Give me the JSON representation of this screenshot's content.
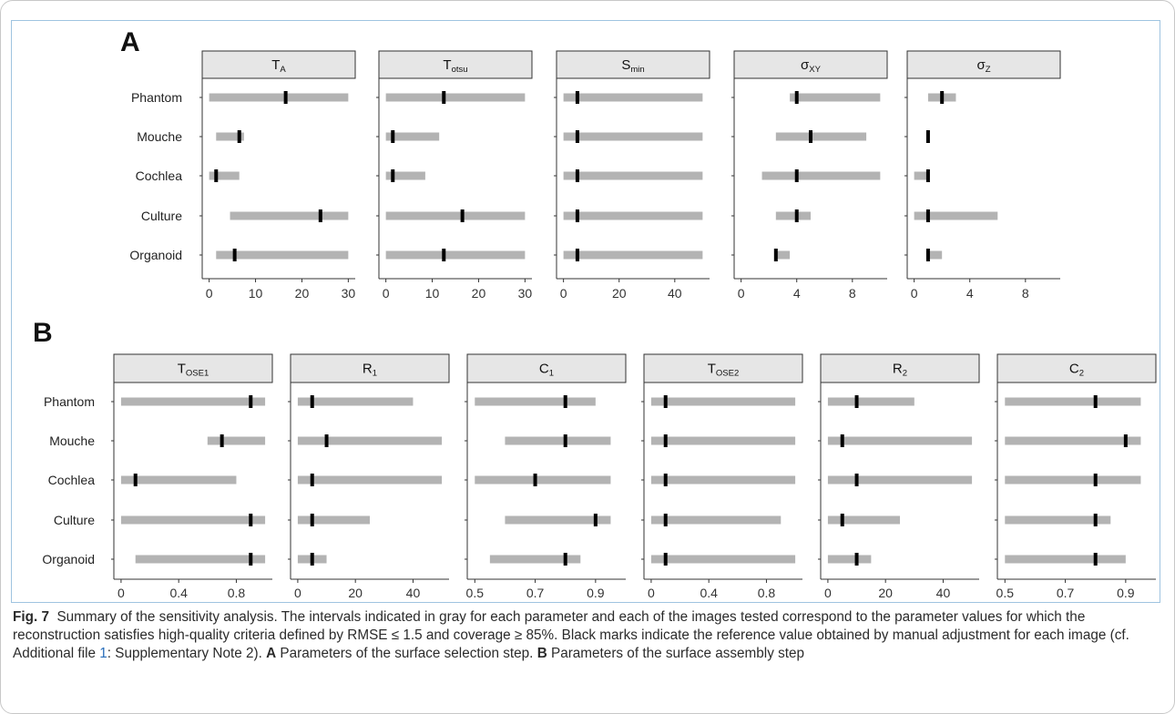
{
  "figure": {
    "panel_letters": [
      "A",
      "B"
    ],
    "caption": {
      "label": "Fig. 7",
      "text_1": "Summary of the sensitivity analysis. The intervals indicated in gray for each parameter and each of the images tested correspond to the parameter values for which the reconstruction satisfies high-quality criteria defined by RMSE ≤ 1.5 and coverage ≥ 85%. Black marks indicate the reference value obtained by manual adjustment for each image (cf. Additional file ",
      "link": "1",
      "text_2": ": Supplementary Note 2). ",
      "a_label": "A",
      "a_text": " Parameters of the surface selection step. ",
      "b_label": "B",
      "b_text": " Parameters of the surface assembly step"
    }
  },
  "colors": {
    "interval": "#b3b3b3",
    "reference": "#000000",
    "strip": "#e6e6e6",
    "axis": "#333333"
  },
  "chart_data": [
    {
      "type": "interval",
      "panel": "A",
      "categories": [
        "Phantom",
        "Mouche",
        "Cochlea",
        "Culture",
        "Organoid"
      ],
      "facets": [
        {
          "title": "T",
          "sub": "A",
          "ticks": [
            0,
            10,
            20,
            30
          ],
          "tick_labels": [
            "0",
            "10",
            "20",
            "30"
          ],
          "xlim": [
            -1.5,
            31.5
          ],
          "intervals": [
            [
              0,
              30
            ],
            [
              1.5,
              7.5
            ],
            [
              0,
              6.5
            ],
            [
              4.5,
              30
            ],
            [
              1.5,
              30
            ]
          ],
          "reference": [
            16.5,
            6.5,
            1.5,
            24,
            5.5
          ]
        },
        {
          "title": "T",
          "sub": "otsu",
          "ticks": [
            0,
            10,
            20,
            30
          ],
          "tick_labels": [
            "0",
            "10",
            "20",
            "30"
          ],
          "xlim": [
            -1.5,
            31.5
          ],
          "intervals": [
            [
              0,
              30
            ],
            [
              0,
              11.5
            ],
            [
              0,
              8.5
            ],
            [
              0,
              30
            ],
            [
              0,
              30
            ]
          ],
          "reference": [
            12.5,
            1.5,
            1.5,
            16.5,
            12.5
          ]
        },
        {
          "title": "S",
          "sub": "min",
          "ticks": [
            0,
            20,
            40
          ],
          "tick_labels": [
            "0",
            "20",
            "40"
          ],
          "xlim": [
            -2.5,
            52.5
          ],
          "intervals": [
            [
              0,
              50
            ],
            [
              0,
              50
            ],
            [
              0,
              50
            ],
            [
              0,
              50
            ],
            [
              0,
              50
            ]
          ],
          "reference": [
            5,
            5,
            5,
            5,
            5
          ]
        },
        {
          "title": "σ",
          "sub": "XY",
          "ticks": [
            0,
            4,
            8
          ],
          "tick_labels": [
            "0",
            "4",
            "8"
          ],
          "xlim": [
            -0.5,
            10.5
          ],
          "intervals": [
            [
              3.5,
              10
            ],
            [
              2.5,
              9
            ],
            [
              1.5,
              10
            ],
            [
              2.5,
              5
            ],
            [
              2.5,
              3.5
            ]
          ],
          "reference": [
            4,
            5,
            4,
            4,
            2.5
          ]
        },
        {
          "title": "σ",
          "sub": "Z",
          "ticks": [
            0,
            4,
            8
          ],
          "tick_labels": [
            "0",
            "4",
            "8"
          ],
          "xlim": [
            -0.5,
            10.5
          ],
          "intervals": [
            [
              1,
              3
            ],
            [
              1,
              1
            ],
            [
              0,
              1
            ],
            [
              0,
              6
            ],
            [
              1,
              2
            ]
          ],
          "reference": [
            2,
            1,
            1,
            1,
            1
          ]
        }
      ]
    },
    {
      "type": "interval",
      "panel": "B",
      "categories": [
        "Phantom",
        "Mouche",
        "Cochlea",
        "Culture",
        "Organoid"
      ],
      "facets": [
        {
          "title": "T",
          "sub": "OSE1",
          "ticks": [
            0,
            0.4,
            0.8
          ],
          "tick_labels": [
            "0",
            "0.4",
            "0.8"
          ],
          "xlim": [
            -0.05,
            1.05
          ],
          "intervals": [
            [
              0,
              1
            ],
            [
              0.6,
              1
            ],
            [
              0,
              0.8
            ],
            [
              0,
              1
            ],
            [
              0.1,
              1
            ]
          ],
          "reference": [
            0.9,
            0.7,
            0.1,
            0.9,
            0.9
          ]
        },
        {
          "title": "R",
          "sub": "1",
          "ticks": [
            0,
            20,
            40
          ],
          "tick_labels": [
            "0",
            "20",
            "40"
          ],
          "xlim": [
            -2.5,
            52.5
          ],
          "intervals": [
            [
              0,
              40
            ],
            [
              0,
              50
            ],
            [
              0,
              50
            ],
            [
              0,
              25
            ],
            [
              0,
              10
            ]
          ],
          "reference": [
            5,
            10,
            5,
            5,
            5
          ]
        },
        {
          "title": "C",
          "sub": "1",
          "ticks": [
            0.5,
            0.7,
            0.9
          ],
          "tick_labels": [
            "0.5",
            "0.7",
            "0.9"
          ],
          "xlim": [
            0.475,
            1.0
          ],
          "intervals": [
            [
              0.5,
              0.9
            ],
            [
              0.6,
              0.95
            ],
            [
              0.5,
              0.95
            ],
            [
              0.6,
              0.95
            ],
            [
              0.55,
              0.85
            ]
          ],
          "reference": [
            0.8,
            0.8,
            0.7,
            0.9,
            0.8
          ]
        },
        {
          "title": "T",
          "sub": "OSE2",
          "ticks": [
            0,
            0.4,
            0.8
          ],
          "tick_labels": [
            "0",
            "0.4",
            "0.8"
          ],
          "xlim": [
            -0.05,
            1.05
          ],
          "intervals": [
            [
              0,
              1
            ],
            [
              0,
              1
            ],
            [
              0,
              1
            ],
            [
              0,
              0.9
            ],
            [
              0,
              1
            ]
          ],
          "reference": [
            0.1,
            0.1,
            0.1,
            0.1,
            0.1
          ]
        },
        {
          "title": "R",
          "sub": "2",
          "ticks": [
            0,
            20,
            40
          ],
          "tick_labels": [
            "0",
            "20",
            "40"
          ],
          "xlim": [
            -2.5,
            52.5
          ],
          "intervals": [
            [
              0,
              30
            ],
            [
              0,
              50
            ],
            [
              0,
              50
            ],
            [
              0,
              25
            ],
            [
              0,
              15
            ]
          ],
          "reference": [
            10,
            5,
            10,
            5,
            10
          ]
        },
        {
          "title": "C",
          "sub": "2",
          "ticks": [
            0.5,
            0.7,
            0.9
          ],
          "tick_labels": [
            "0.5",
            "0.7",
            "0.9"
          ],
          "xlim": [
            0.475,
            1.0
          ],
          "intervals": [
            [
              0.5,
              0.95
            ],
            [
              0.5,
              0.95
            ],
            [
              0.5,
              0.95
            ],
            [
              0.5,
              0.85
            ],
            [
              0.5,
              0.9
            ]
          ],
          "reference": [
            0.8,
            0.9,
            0.8,
            0.8,
            0.8
          ]
        }
      ]
    }
  ]
}
